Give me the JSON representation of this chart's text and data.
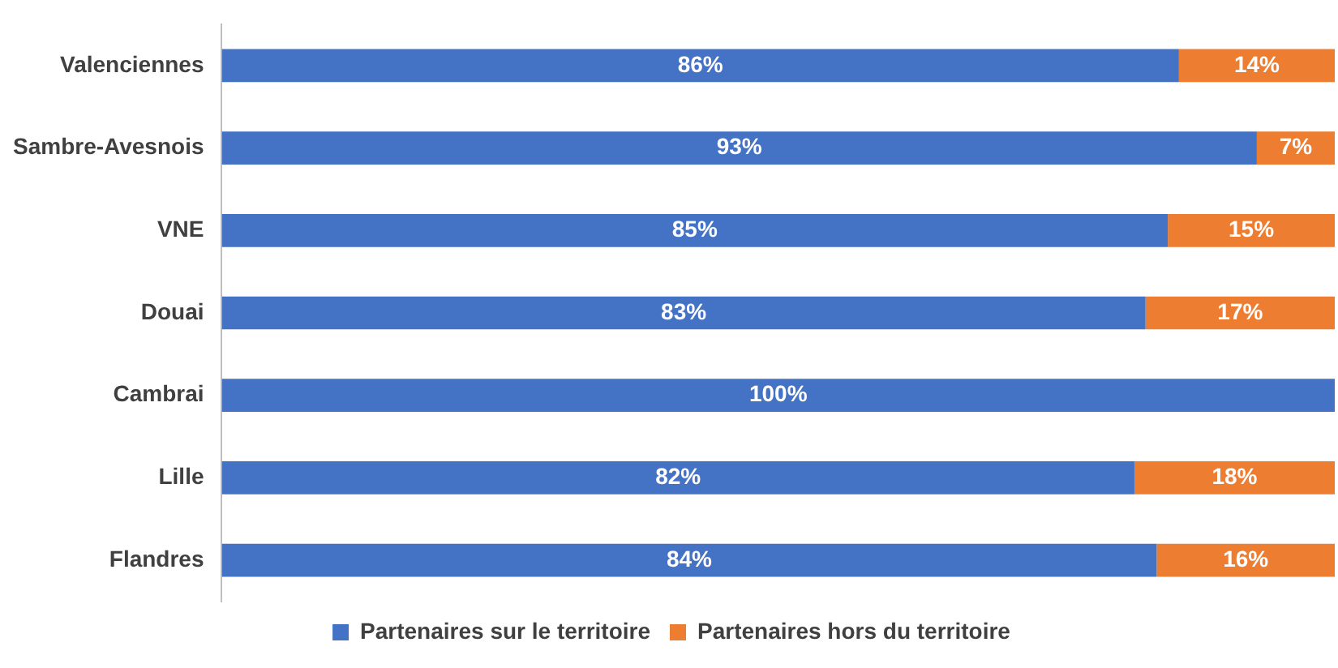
{
  "chart_data": {
    "type": "bar",
    "orientation": "horizontal",
    "stacked": true,
    "categories": [
      "Valenciennes",
      "Sambre-Avesnois",
      "VNE",
      "Douai",
      "Cambrai",
      "Lille",
      "Flandres"
    ],
    "series": [
      {
        "name": "Partenaires sur le territoire",
        "color": "#4472c4",
        "values": [
          86,
          93,
          85,
          83,
          100,
          82,
          84
        ],
        "value_labels": [
          "86%",
          "93%",
          "85%",
          "83%",
          "100%",
          "82%",
          "84%"
        ]
      },
      {
        "name": "Partenaires hors du territoire",
        "color": "#ed7d31",
        "values": [
          14,
          7,
          15,
          17,
          0,
          18,
          16
        ],
        "value_labels": [
          "14%",
          "7%",
          "15%",
          "17%",
          null,
          "18%",
          "16%"
        ]
      }
    ],
    "xlim": [
      0,
      100
    ],
    "tick_labels": "y",
    "grid": false,
    "legend": "bottom"
  }
}
